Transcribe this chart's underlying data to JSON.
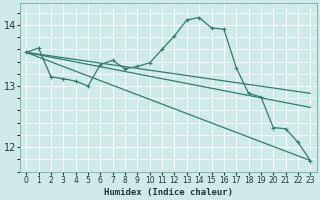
{
  "xlabel": "Humidex (Indice chaleur)",
  "background_color": "#ceeaea",
  "grid_color": "#ffffff",
  "line_color": "#2e7d6e",
  "xlim": [
    -0.5,
    23.5
  ],
  "ylim": [
    11.6,
    14.35
  ],
  "yticks": [
    12,
    13,
    14
  ],
  "xticks": [
    0,
    1,
    2,
    3,
    4,
    5,
    6,
    7,
    8,
    9,
    10,
    11,
    12,
    13,
    14,
    15,
    16,
    17,
    18,
    19,
    20,
    21,
    22,
    23
  ],
  "line1_x": [
    0,
    1,
    2,
    3,
    4,
    5,
    6,
    7,
    8,
    9,
    10,
    11,
    12,
    13,
    14,
    15,
    16,
    17,
    18,
    19,
    20,
    21,
    22,
    23
  ],
  "line1_y": [
    13.55,
    13.62,
    13.15,
    13.12,
    13.08,
    13.0,
    13.35,
    13.42,
    13.28,
    13.32,
    13.38,
    13.6,
    13.82,
    14.08,
    14.12,
    13.95,
    13.93,
    13.3,
    12.88,
    12.82,
    12.32,
    12.3,
    12.08,
    11.78
  ],
  "line2_x": [
    0,
    23
  ],
  "line2_y": [
    13.55,
    11.78
  ],
  "line3_x": [
    0,
    23
  ],
  "line3_y": [
    13.55,
    12.65
  ],
  "line4_x": [
    0,
    23
  ],
  "line4_y": [
    13.55,
    12.88
  ]
}
